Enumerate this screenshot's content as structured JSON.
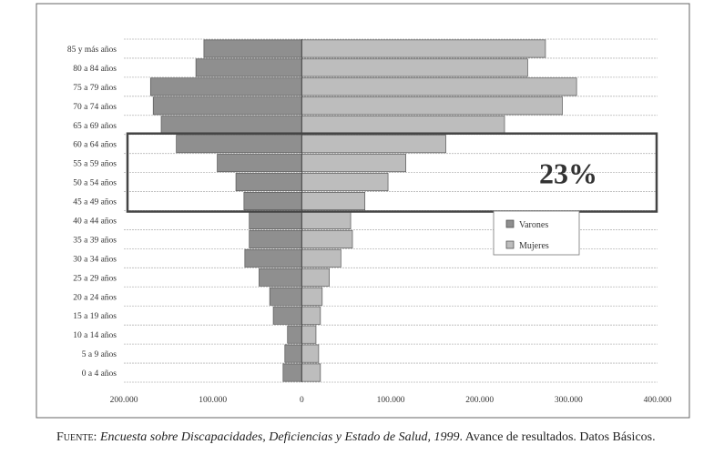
{
  "chart_data": {
    "type": "bar",
    "orientation": "horizontal",
    "layout": "population-pyramid",
    "categories": [
      "0 a 4 años",
      "5 a 9 años",
      "10 a 14 años",
      "15 a 19 años",
      "20 a 24 años",
      "25 a 29 años",
      "30 a 34 años",
      "35 a 39 años",
      "40 a 44 años",
      "45 a 49 años",
      "50 a 54 años",
      "55 a 59 años",
      "60 a 64 años",
      "65 a 69 años",
      "70 a 74 años",
      "75 a 79 años",
      "80 a 84 años",
      "85 y más años"
    ],
    "series": [
      {
        "name": "Varones",
        "side": "left",
        "color": "#8f8f8f",
        "values": [
          21000,
          19000,
          16000,
          32000,
          36000,
          48000,
          64000,
          59000,
          59000,
          65000,
          74000,
          95000,
          141000,
          158000,
          167000,
          170000,
          119000,
          110000
        ]
      },
      {
        "name": "Mujeres",
        "side": "right",
        "color": "#bdbdbd",
        "values": [
          21000,
          19000,
          16000,
          21000,
          23000,
          31000,
          44000,
          57000,
          55000,
          71000,
          97000,
          117000,
          162000,
          228000,
          293000,
          309000,
          254000,
          274000
        ]
      }
    ],
    "xaxis_ticks": [
      "200.000",
      "100.000",
      "0",
      "100.000",
      "200.000",
      "300.000",
      "400.000"
    ],
    "xlim": [
      -200000,
      400000
    ],
    "grid": true,
    "legend_position": "center-right",
    "annotation": {
      "text": "23%",
      "from_category": "45 a 49 años",
      "to_category": "60 a 64 años"
    }
  },
  "caption": {
    "source_label": "Fuente:",
    "source_title": "Encuesta sobre Discapacidades, Deficiencias y Estado de Salud, 1999",
    "source_rest": ". Avance de resultados. Datos Básicos."
  },
  "colors": {
    "plot_bg": "#ffffff",
    "grid": "#b8b8b8",
    "highlight_box": "#444444"
  }
}
